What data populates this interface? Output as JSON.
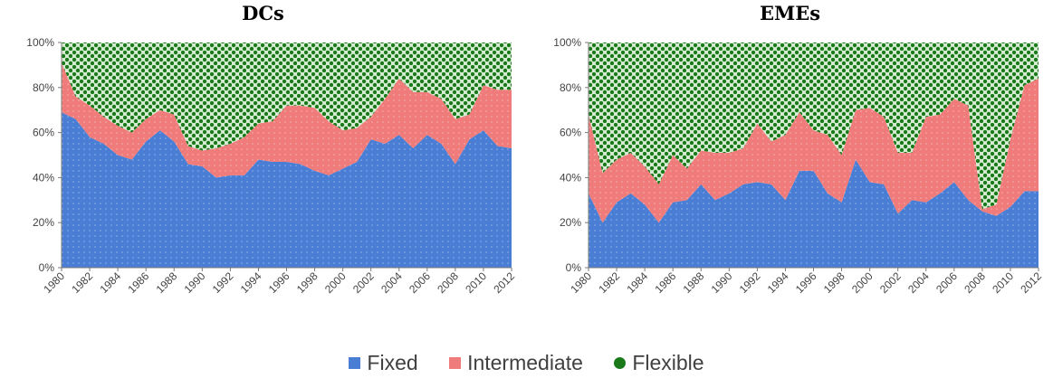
{
  "chart_data": [
    {
      "type": "area",
      "stacked": true,
      "percent": true,
      "title": "DCs",
      "x": [
        "1980",
        "1981",
        "1982",
        "1983",
        "1984",
        "1985",
        "1986",
        "1987",
        "1988",
        "1989",
        "1990",
        "1991",
        "1992",
        "1993",
        "1994",
        "1995",
        "1996",
        "1997",
        "1998",
        "1999",
        "2000",
        "2001",
        "2002",
        "2003",
        "2004",
        "2005",
        "2006",
        "2007",
        "2008",
        "2009",
        "2010",
        "2011",
        "2012"
      ],
      "xticks": [
        "1980",
        "1982",
        "1984",
        "1986",
        "1988",
        "1990",
        "1992",
        "1994",
        "1996",
        "1998",
        "2000",
        "2002",
        "2004",
        "2006",
        "2008",
        "2010",
        "2012"
      ],
      "yticks": [
        "0%",
        "20%",
        "40%",
        "60%",
        "80%",
        "100%"
      ],
      "ylim": [
        0,
        100
      ],
      "series": [
        {
          "name": "Fixed",
          "values": [
            69,
            66,
            58,
            55,
            50,
            48,
            56,
            61,
            56,
            46,
            45,
            40,
            41,
            41,
            48,
            47,
            47,
            46,
            43,
            41,
            44,
            47,
            57,
            55,
            59,
            53,
            59,
            55,
            46,
            57,
            61,
            54,
            53
          ]
        },
        {
          "name": "Intermediate",
          "values": [
            22,
            10,
            14,
            12,
            13,
            12,
            10,
            9,
            12,
            8,
            7,
            13,
            14,
            17,
            16,
            18,
            25,
            26,
            28,
            24,
            17,
            15,
            10,
            20,
            25,
            25,
            19,
            20,
            20,
            11,
            20,
            25,
            26
          ]
        },
        {
          "name": "Flexible",
          "values": [
            9,
            24,
            28,
            33,
            37,
            40,
            34,
            30,
            32,
            46,
            48,
            47,
            45,
            42,
            36,
            35,
            28,
            28,
            29,
            35,
            39,
            38,
            33,
            25,
            16,
            22,
            22,
            25,
            34,
            32,
            19,
            21,
            21
          ]
        }
      ]
    },
    {
      "type": "area",
      "stacked": true,
      "percent": true,
      "title": "EMEs",
      "x": [
        "1980",
        "1981",
        "1982",
        "1983",
        "1984",
        "1985",
        "1986",
        "1987",
        "1988",
        "1989",
        "1990",
        "1991",
        "1992",
        "1993",
        "1994",
        "1995",
        "1996",
        "1997",
        "1998",
        "1999",
        "2000",
        "2001",
        "2002",
        "2003",
        "2004",
        "2005",
        "2006",
        "2007",
        "2008",
        "2009",
        "2010",
        "2011",
        "2012"
      ],
      "xticks": [
        "1980",
        "1982",
        "1984",
        "1986",
        "1988",
        "1990",
        "1992",
        "1994",
        "1996",
        "1998",
        "2000",
        "2002",
        "2004",
        "2006",
        "2008",
        "2010",
        "2012"
      ],
      "yticks": [
        "0%",
        "20%",
        "40%",
        "60%",
        "80%",
        "100%"
      ],
      "ylim": [
        0,
        100
      ],
      "series": [
        {
          "name": "Fixed",
          "values": [
            33,
            20,
            29,
            33,
            28,
            20,
            29,
            30,
            37,
            30,
            33,
            37,
            38,
            37,
            30,
            43,
            43,
            33,
            29,
            48,
            38,
            37,
            24,
            30,
            29,
            33,
            38,
            30,
            25,
            23,
            27,
            34,
            34
          ]
        },
        {
          "name": "Intermediate",
          "values": [
            35,
            22,
            19,
            18,
            17,
            17,
            21,
            14,
            15,
            21,
            18,
            16,
            26,
            19,
            29,
            26,
            18,
            26,
            21,
            22,
            33,
            30,
            27,
            21,
            38,
            35,
            37,
            42,
            1,
            5,
            30,
            47,
            50
          ]
        },
        {
          "name": "Flexible",
          "values": [
            32,
            58,
            52,
            49,
            55,
            63,
            50,
            56,
            48,
            49,
            49,
            47,
            36,
            44,
            41,
            31,
            39,
            41,
            50,
            30,
            29,
            33,
            49,
            49,
            33,
            32,
            25,
            28,
            74,
            72,
            43,
            19,
            16
          ]
        }
      ]
    }
  ],
  "legend": {
    "items": [
      {
        "label": "Fixed",
        "color": "#4a7ed4"
      },
      {
        "label": "Intermediate",
        "color": "#f07b7b"
      },
      {
        "label": "Flexible",
        "color": "#1a7a1a"
      }
    ]
  },
  "colors": {
    "fixed": "#4a7ed4",
    "intermediate": "#f07b7b",
    "flexible": "#1a7a1a",
    "flexible_bg": "#d6ecd2",
    "axis": "#7a7a7a",
    "tick_text": "#444444"
  }
}
